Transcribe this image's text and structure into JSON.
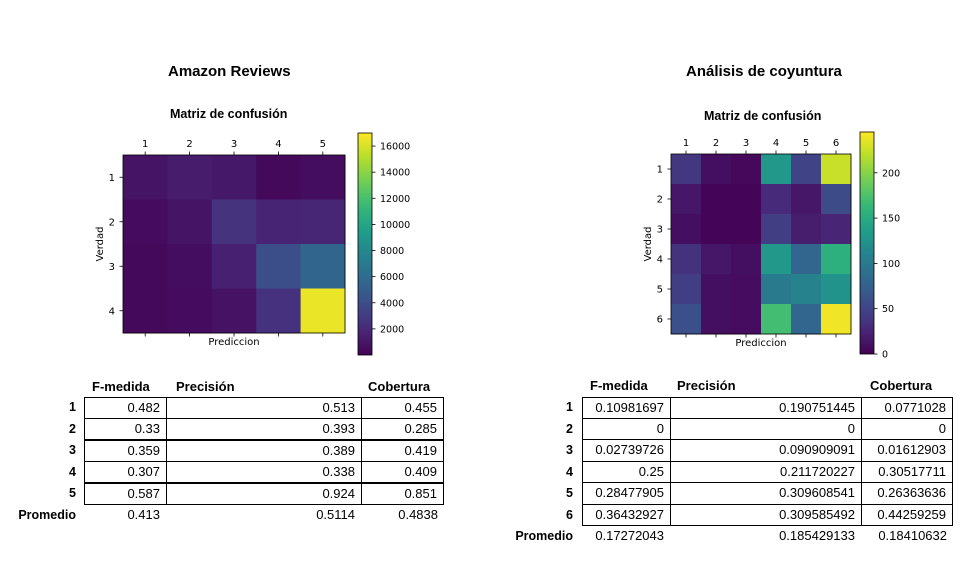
{
  "panels": [
    {
      "title": "Amazon Reviews",
      "table": {
        "headers": [
          "F-medida",
          "Precisión",
          "Cobertura"
        ],
        "rows": [
          {
            "label": "1",
            "f": "0.482",
            "p": "0.513",
            "c": "0.455"
          },
          {
            "label": "2",
            "f": "0.33",
            "p": "0.393",
            "c": "0.285"
          },
          {
            "label": "3",
            "f": "0.359",
            "p": "0.389",
            "c": "0.419"
          },
          {
            "label": "4",
            "f": "0.307",
            "p": "0.338",
            "c": "0.409"
          },
          {
            "label": "5",
            "f": "0.587",
            "p": "0.924",
            "c": "0.851"
          }
        ],
        "avg": {
          "label": "Promedio",
          "f": "0.413",
          "p": "0.5114",
          "c": "0.4838"
        }
      }
    },
    {
      "title": "Análisis de coyuntura",
      "table": {
        "headers": [
          "F-medida",
          "Precisión",
          "Cobertura"
        ],
        "rows": [
          {
            "label": "1",
            "f": "0.10981697",
            "p": "0.190751445",
            "c": "0.0771028"
          },
          {
            "label": "2",
            "f": "0",
            "p": "0",
            "c": "0"
          },
          {
            "label": "3",
            "f": "0.02739726",
            "p": "0.090909091",
            "c": "0.01612903"
          },
          {
            "label": "4",
            "f": "0.25",
            "p": "0.211720227",
            "c": "0.30517711"
          },
          {
            "label": "5",
            "f": "0.28477905",
            "p": "0.309608541",
            "c": "0.26363636"
          },
          {
            "label": "6",
            "f": "0.36432927",
            "p": "0.309585492",
            "c": "0.44259259"
          }
        ],
        "avg": {
          "label": "Promedio",
          "f": "0.17272043",
          "p": "0.185429133",
          "c": "0.18410632"
        }
      }
    }
  ],
  "chart_data": [
    {
      "type": "heatmap",
      "title": "Matriz de confusión",
      "xlabel": "Prediccion",
      "ylabel": "Verdad",
      "x_ticks": [
        "1",
        "2",
        "3",
        "4",
        "5"
      ],
      "y_ticks": [
        "1",
        "2",
        "3",
        "4"
      ],
      "values": [
        [
          900,
          1300,
          1100,
          400,
          600
        ],
        [
          500,
          900,
          2500,
          1700,
          1800
        ],
        [
          400,
          600,
          1500,
          4000,
          5500
        ],
        [
          400,
          500,
          800,
          2400,
          16500
        ]
      ],
      "colorbar": {
        "min": 0,
        "max": 17000,
        "ticks": [
          2000,
          4000,
          6000,
          8000,
          10000,
          12000,
          14000,
          16000
        ]
      },
      "colormap": "viridis"
    },
    {
      "type": "heatmap",
      "title": "Matriz de confusión",
      "xlabel": "Prediccion",
      "ylabel": "Verdad",
      "x_ticks": [
        "1",
        "2",
        "3",
        "4",
        "5",
        "6"
      ],
      "y_ticks": [
        "1",
        "2",
        "3",
        "4",
        "5",
        "6"
      ],
      "values": [
        [
          40,
          10,
          5,
          130,
          50,
          225
        ],
        [
          15,
          3,
          2,
          30,
          15,
          55
        ],
        [
          10,
          3,
          2,
          45,
          20,
          25
        ],
        [
          35,
          15,
          10,
          130,
          80,
          155
        ],
        [
          45,
          10,
          8,
          100,
          110,
          125
        ],
        [
          60,
          10,
          8,
          170,
          80,
          240
        ]
      ],
      "colorbar": {
        "min": 0,
        "max": 245,
        "ticks": [
          0,
          50,
          100,
          150,
          200
        ]
      },
      "colormap": "viridis"
    }
  ]
}
